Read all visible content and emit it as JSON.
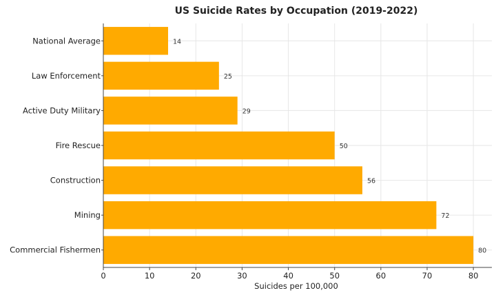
{
  "chart_data": {
    "type": "bar",
    "orientation": "horizontal",
    "title": "US Suicide Rates by Occupation (2019-2022)",
    "xlabel": "Suicides per 100,000",
    "ylabel": "",
    "categories": [
      "National Average",
      "Law Enforcement",
      "Active Duty Military",
      "Fire Rescue",
      "Construction",
      "Mining",
      "Commercial Fishermen"
    ],
    "values": [
      14,
      25,
      29,
      50,
      56,
      72,
      80
    ],
    "xlim": [
      0,
      84
    ],
    "xticks": [
      0,
      10,
      20,
      30,
      40,
      50,
      60,
      70,
      80
    ],
    "grid": true,
    "bar_color": "#FFAA00"
  }
}
